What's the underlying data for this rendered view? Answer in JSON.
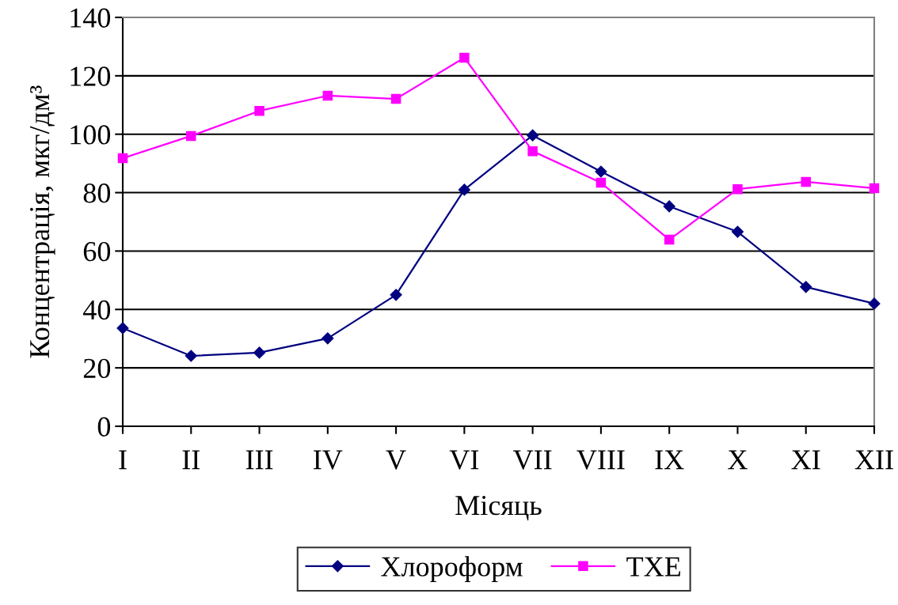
{
  "chart_data": {
    "type": "line",
    "xlabel": "Місяць",
    "ylabel": "Концентрація, мкг/дм³",
    "categories": [
      "I",
      "II",
      "III",
      "IV",
      "V",
      "VI",
      "VII",
      "VIII",
      "IX",
      "X",
      "XI",
      "XII"
    ],
    "series": [
      {
        "name": "Хлороформ",
        "color": "#000080",
        "marker": "diamond",
        "values": [
          33.6,
          24.1,
          25.2,
          30.1,
          45,
          81,
          99.6,
          87.2,
          75.3,
          66.6,
          47.7,
          42
        ]
      },
      {
        "name": "ТХЕ",
        "color": "#ff00ff",
        "marker": "square",
        "values": [
          91.8,
          99.4,
          108,
          113.2,
          112.1,
          126.2,
          94.2,
          83.4,
          63.9,
          81.2,
          83.7,
          81.5
        ]
      }
    ],
    "ylim": [
      0,
      140
    ],
    "yticks": [
      0,
      20,
      40,
      60,
      80,
      100,
      120,
      140
    ],
    "grid": "y",
    "legend": "bottom",
    "line_style": "solid"
  }
}
